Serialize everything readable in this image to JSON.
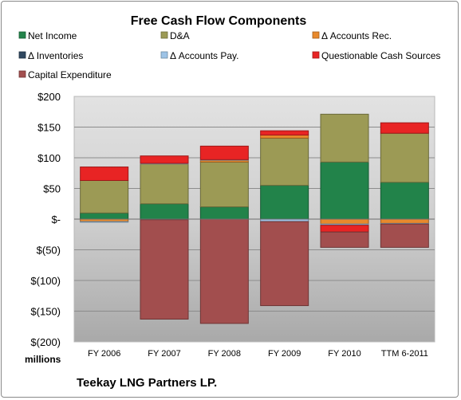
{
  "chart_data": {
    "type": "bar",
    "stacked": true,
    "title": "Free Cash Flow Components",
    "categories": [
      "FY 2006",
      "FY 2007",
      "FY 2008",
      "FY 2009",
      "FY 2010",
      "TTM 6-2011"
    ],
    "y_unit_label": "millions",
    "ylim": [
      -200,
      200
    ],
    "yticks": [
      200,
      150,
      100,
      50,
      0,
      -50,
      -100,
      -150,
      -200
    ],
    "ytick_labels": [
      "$200",
      "$150",
      "$100",
      "$50",
      "$-",
      "$(50)",
      "$(100)",
      "$(150)",
      "$(200)"
    ],
    "grid": true,
    "legend_position": "top",
    "series": [
      {
        "name": "Net Income",
        "color": "#22834a",
        "values": [
          10,
          25,
          20,
          55,
          93,
          60
        ]
      },
      {
        "name": "D&A",
        "color": "#9c9a55",
        "values": [
          53,
          65,
          73,
          77,
          78,
          80
        ]
      },
      {
        "name": "Δ Accounts Rec.",
        "color": "#e8892c",
        "values": [
          -4,
          -1,
          3,
          5,
          -8,
          -7
        ]
      },
      {
        "name": "Δ Inventories",
        "color": "#2f4760",
        "values": [
          0,
          0,
          0,
          0,
          0,
          0
        ]
      },
      {
        "name": "Δ Accounts Pay.",
        "color": "#9dc3e6",
        "values": [
          -1,
          1,
          1,
          -4,
          -2,
          -1
        ]
      },
      {
        "name": "Questionable Cash Sources",
        "color": "#e82424",
        "values": [
          22,
          12,
          22,
          7,
          -11,
          17
        ]
      },
      {
        "name": "Capital Expenditure",
        "color": "#a24e4e",
        "values": [
          0,
          -162,
          -170,
          -137,
          -25,
          -38
        ]
      }
    ]
  },
  "footer": {
    "company": "Teekay LNG Partners LP."
  }
}
